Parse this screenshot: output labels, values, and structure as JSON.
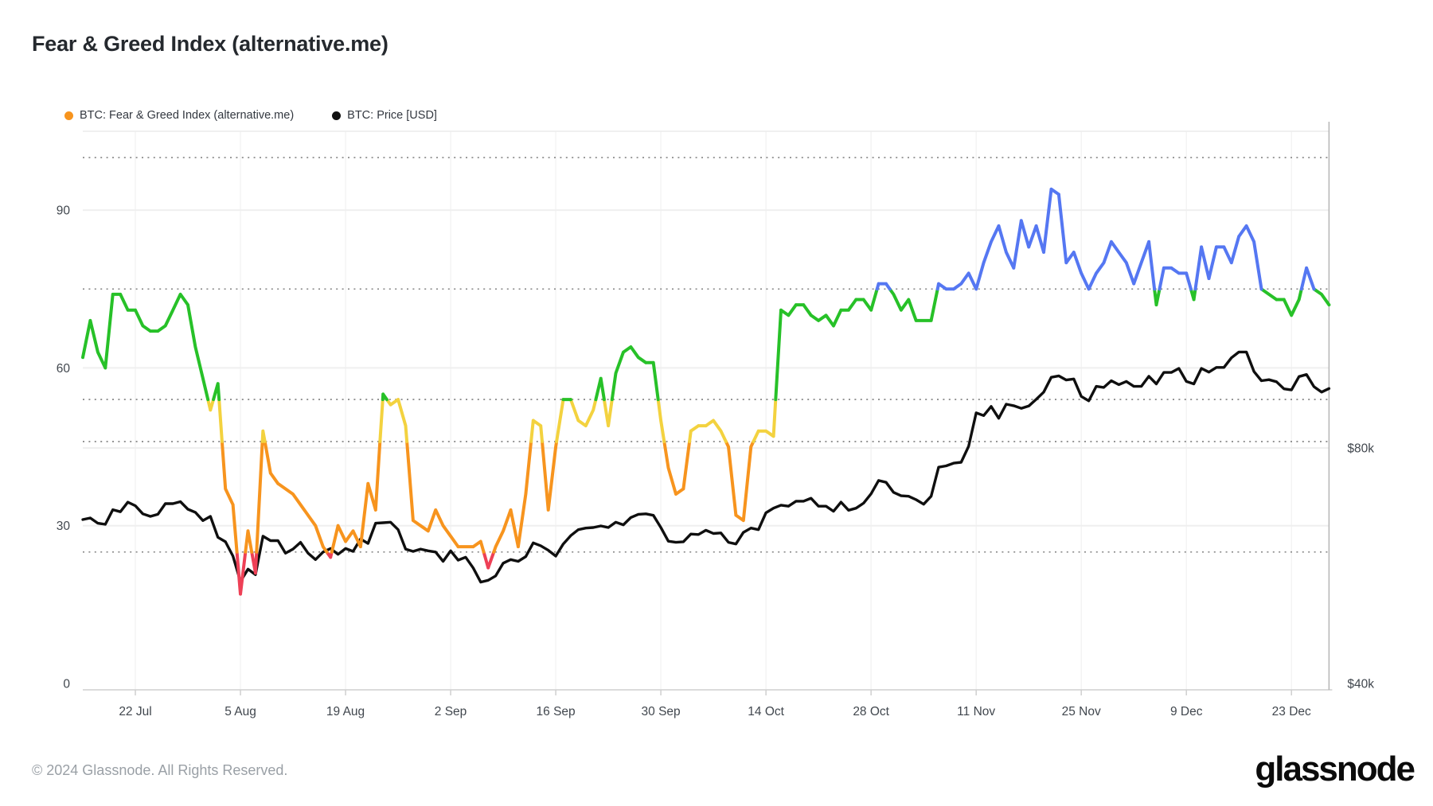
{
  "page": {
    "title": "Fear & Greed Index (alternative.me)",
    "footer_copyright": "© 2024 Glassnode. All Rights Reserved.",
    "brand_logo": "glassnode"
  },
  "legend": [
    {
      "label": "BTC: Fear & Greed Index (alternative.me)",
      "color": "#f7941e"
    },
    {
      "label": "BTC: Price [USD]",
      "color": "#111111"
    }
  ],
  "axes": {
    "left_ticks": [
      90,
      60,
      30,
      0
    ],
    "right_ticks": [
      {
        "label": "$80k",
        "value_k": 80
      },
      {
        "label": "$40k",
        "value_k": 40
      }
    ],
    "x_ticks": [
      {
        "label": "22 Jul",
        "day_index": 7
      },
      {
        "label": "5 Aug",
        "day_index": 21
      },
      {
        "label": "19 Aug",
        "day_index": 35
      },
      {
        "label": "2 Sep",
        "day_index": 49
      },
      {
        "label": "16 Sep",
        "day_index": 63
      },
      {
        "label": "30 Sep",
        "day_index": 77
      },
      {
        "label": "14 Oct",
        "day_index": 91
      },
      {
        "label": "28 Oct",
        "day_index": 105
      },
      {
        "label": "11 Nov",
        "day_index": 119
      },
      {
        "label": "25 Nov",
        "day_index": 133
      },
      {
        "label": "9 Dec",
        "day_index": 147
      },
      {
        "label": "23 Dec",
        "day_index": 161
      }
    ]
  },
  "colors": {
    "extreme_fear": "#ee4056",
    "fear": "#f7941e",
    "neutral": "#f3d23f",
    "greed": "#27c128",
    "extreme_greed": "#5577f2",
    "price_line": "#0f0f0f",
    "dotted_grid": "#8f8f8f",
    "solid_grid": "#efefef",
    "axis_line": "#b5b5b5",
    "bottom_axis": "#cfcfcf",
    "tick_text": "#41474e"
  },
  "chart_data": {
    "type": "line",
    "title": "Fear & Greed Index (alternative.me)",
    "x_range": {
      "start": "2024-07-15",
      "end": "2024-12-28",
      "step_days": 1
    },
    "index_axis": {
      "ticks": [
        0,
        30,
        60,
        90
      ],
      "band_thresholds": [
        25,
        46,
        54,
        75,
        100
      ],
      "ylim": [
        0,
        105
      ]
    },
    "price_axis": {
      "scale": "log2",
      "ticks_k": [
        40,
        80
      ]
    },
    "bands": [
      {
        "upto": 25,
        "name": "extreme-fear",
        "color": "#ee4056"
      },
      {
        "upto": 46,
        "name": "fear",
        "color": "#f7941e"
      },
      {
        "upto": 54,
        "name": "neutral",
        "color": "#f3d23f"
      },
      {
        "upto": 75,
        "name": "greed",
        "color": "#27c128"
      },
      {
        "upto": 101,
        "name": "extreme-greed",
        "color": "#5577f2"
      }
    ],
    "series": [
      {
        "name": "BTC: Fear & Greed Index (alternative.me)",
        "axis": "index",
        "values": [
          62,
          69,
          63,
          60,
          74,
          74,
          71,
          71,
          68,
          67,
          67,
          68,
          71,
          74,
          72,
          64,
          58,
          52,
          57,
          37,
          34,
          17,
          29,
          21,
          48,
          40,
          38,
          37,
          36,
          34,
          32,
          30,
          26,
          24,
          30,
          27,
          29,
          26,
          38,
          33,
          55,
          53,
          54,
          49,
          31,
          30,
          29,
          33,
          30,
          28,
          26,
          26,
          26,
          27,
          22,
          26,
          29,
          33,
          26,
          36,
          50,
          49,
          33,
          45,
          54,
          54,
          50,
          49,
          52,
          58,
          49,
          59,
          63,
          64,
          62,
          61,
          61,
          50,
          41,
          36,
          37,
          48,
          49,
          49,
          50,
          48,
          45,
          32,
          31,
          45,
          48,
          48,
          47,
          71,
          70,
          72,
          72,
          70,
          69,
          70,
          68,
          71,
          71,
          73,
          73,
          71,
          76,
          76,
          74,
          71,
          73,
          69,
          69,
          69,
          76,
          75,
          75,
          76,
          78,
          75,
          80,
          84,
          87,
          82,
          79,
          88,
          83,
          87,
          82,
          94,
          93,
          80,
          82,
          78,
          75,
          78,
          80,
          84,
          82,
          80,
          76,
          80,
          84,
          72,
          79,
          79,
          78,
          78,
          73,
          83,
          77,
          83,
          83,
          80,
          85,
          87,
          84,
          75,
          74,
          73,
          73,
          70,
          73,
          79,
          75,
          74,
          72
        ]
      },
      {
        "name": "BTC: Price [USD]",
        "axis": "price_usd_thousands",
        "values": [
          64.8,
          65.1,
          64.1,
          63.9,
          66.7,
          66.3,
          68.2,
          67.5,
          65.9,
          65.4,
          65.8,
          67.9,
          67.9,
          68.3,
          66.8,
          66.2,
          64.6,
          65.4,
          61.5,
          60.7,
          58.2,
          54.0,
          56.0,
          55.1,
          61.7,
          60.9,
          60.9,
          58.7,
          59.4,
          60.6,
          58.7,
          57.6,
          58.9,
          59.5,
          58.5,
          59.5,
          59.0,
          61.2,
          60.4,
          64.1,
          64.2,
          64.3,
          62.9,
          59.4,
          59.0,
          59.4,
          59.1,
          58.9,
          57.3,
          59.1,
          57.5,
          58.0,
          56.2,
          53.9,
          54.2,
          54.9,
          57.0,
          57.6,
          57.3,
          58.1,
          60.5,
          60.0,
          59.2,
          58.2,
          60.3,
          61.8,
          62.9,
          63.2,
          63.3,
          63.6,
          63.3,
          64.3,
          63.8,
          65.2,
          65.8,
          65.9,
          65.6,
          63.3,
          60.8,
          60.6,
          60.7,
          62.1,
          62.0,
          62.8,
          62.2,
          62.3,
          60.6,
          60.3,
          62.4,
          63.2,
          62.9,
          66.1,
          67.0,
          67.6,
          67.4,
          68.4,
          68.4,
          69.0,
          67.4,
          67.4,
          66.4,
          68.2,
          66.6,
          67.0,
          68.0,
          69.9,
          72.7,
          72.3,
          70.2,
          69.5,
          69.4,
          68.7,
          67.8,
          69.4,
          75.6,
          75.9,
          76.5,
          76.7,
          80.4,
          88.7,
          88.0,
          90.4,
          87.3,
          91.0,
          90.6,
          89.9,
          90.5,
          92.3,
          94.3,
          98.5,
          98.9,
          97.7,
          98.0,
          93.1,
          91.9,
          95.9,
          95.6,
          97.5,
          96.4,
          97.3,
          95.9,
          95.9,
          98.8,
          96.6,
          99.9,
          99.9,
          101.1,
          97.3,
          96.6,
          101.1,
          100.0,
          101.4,
          101.4,
          104.3,
          106.1,
          106.1,
          100.2,
          97.5,
          97.8,
          97.2,
          95.2,
          94.9,
          98.7,
          99.3,
          95.8,
          94.3,
          95.3
        ]
      }
    ]
  }
}
